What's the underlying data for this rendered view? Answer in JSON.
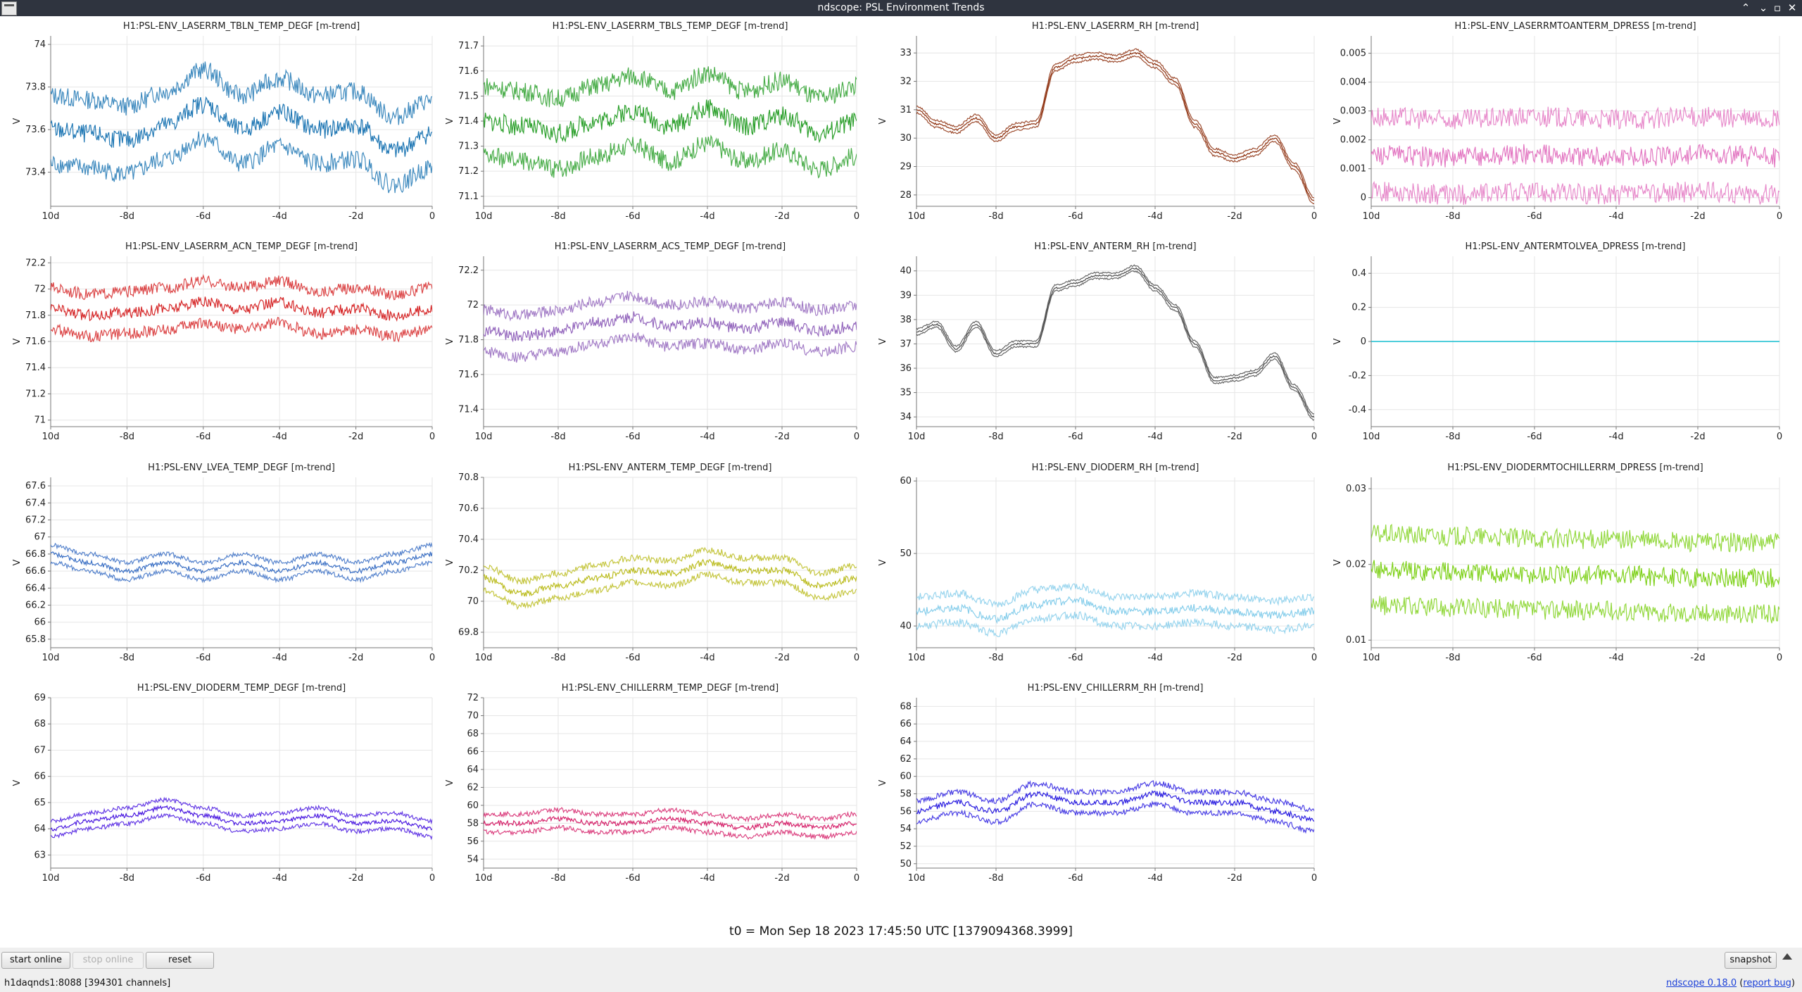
{
  "window": {
    "title": "ndscope: PSL Environment Trends"
  },
  "footer": {
    "t0": "t0 = Mon Sep 18 2023 17:45:50 UTC [1379094368.3999]"
  },
  "toolbar": {
    "start_online": "start online",
    "stop_online": "stop online",
    "reset": "reset",
    "snapshot": "snapshot"
  },
  "status": {
    "server": "h1daqnds1:8088  [394301 channels]",
    "version": "ndscope 0.18.0",
    "report_bug": "report bug"
  },
  "chart_data": [
    {
      "type": "line",
      "title": "H1:PSL-ENV_LASERRM_TBLN_TEMP_DEGF [m-trend]",
      "ylabel": "V",
      "color": "#1f77b4",
      "xticks": [
        "10d",
        "-8d",
        "-6d",
        "-4d",
        "-2d",
        "0"
      ],
      "yticks": [
        73.4,
        73.6,
        73.8,
        74
      ],
      "ylim": [
        73.24,
        74.04
      ],
      "x": [
        -10,
        -9,
        -8,
        -7,
        -6,
        -5,
        -4,
        -3,
        -2,
        -1,
        0
      ],
      "y": [
        73.6,
        73.58,
        73.55,
        73.62,
        73.72,
        73.6,
        73.68,
        73.6,
        73.62,
        73.5,
        73.58
      ],
      "band": 0.16
    },
    {
      "type": "line",
      "title": "H1:PSL-ENV_LASERRM_TBLS_TEMP_DEGF [m-trend]",
      "ylabel": "V",
      "color": "#2ca02c",
      "xticks": [
        "10d",
        "-8d",
        "-6d",
        "-4d",
        "-2d",
        "0"
      ],
      "yticks": [
        71.1,
        71.2,
        71.3,
        71.4,
        71.5,
        71.6,
        71.7
      ],
      "ylim": [
        71.06,
        71.74
      ],
      "x": [
        -10,
        -9,
        -8,
        -7,
        -6,
        -5,
        -4,
        -3,
        -2,
        -1,
        0
      ],
      "y": [
        71.4,
        71.38,
        71.35,
        71.4,
        71.44,
        71.38,
        71.45,
        71.38,
        71.42,
        71.35,
        71.4
      ],
      "band": 0.14
    },
    {
      "type": "line",
      "title": "H1:PSL-ENV_LASERRM_RH [m-trend]",
      "ylabel": "V",
      "color": "#8c2d0a",
      "xticks": [
        "10d",
        "-8d",
        "-6d",
        "-4d",
        "-2d",
        "0"
      ],
      "yticks": [
        28,
        29,
        30,
        31,
        32,
        33
      ],
      "ylim": [
        27.6,
        33.6
      ],
      "x": [
        -10,
        -9.5,
        -9,
        -8.5,
        -8,
        -7.5,
        -7,
        -6.5,
        -6,
        -5.5,
        -5,
        -4.5,
        -4,
        -3.5,
        -3,
        -2.5,
        -2,
        -1.5,
        -1,
        -0.5,
        0
      ],
      "y": [
        31,
        30.5,
        30.3,
        30.7,
        30,
        30.4,
        30.5,
        32.5,
        32.8,
        32.9,
        32.8,
        33,
        32.6,
        32,
        30.5,
        29.5,
        29.3,
        29.5,
        30,
        29,
        27.8
      ],
      "band": 0.12
    },
    {
      "type": "line",
      "title": "H1:PSL-ENV_LASERRMTOANTERM_DPRESS [m-trend]",
      "ylabel": "V",
      "color": "#e377c2",
      "xticks": [
        "10d",
        "-8d",
        "-6d",
        "-4d",
        "-2d",
        "0"
      ],
      "yticks": [
        0,
        0.001,
        0.002,
        0.003,
        0.004,
        0.005
      ],
      "ylim": [
        -0.0003,
        0.0056
      ],
      "x": [
        -10,
        -8,
        -6,
        -4,
        -2,
        0
      ],
      "y": [
        0.0015,
        0.0014,
        0.0015,
        0.0014,
        0.0015,
        0.0014
      ],
      "band": 0.0013
    },
    {
      "type": "line",
      "title": "H1:PSL-ENV_LASERRM_ACN_TEMP_DEGF [m-trend]",
      "ylabel": "V",
      "color": "#d62728",
      "xticks": [
        "10d",
        "-8d",
        "-6d",
        "-4d",
        "-2d",
        "0"
      ],
      "yticks": [
        71,
        71.2,
        71.4,
        71.6,
        71.8,
        72,
        72.2
      ],
      "ylim": [
        70.95,
        72.25
      ],
      "x": [
        -10,
        -9,
        -8,
        -7,
        -6,
        -5,
        -4,
        -3,
        -2,
        -1,
        0
      ],
      "y": [
        71.85,
        71.8,
        71.82,
        71.85,
        71.9,
        71.85,
        71.9,
        71.82,
        71.85,
        71.8,
        71.85
      ],
      "band": 0.16
    },
    {
      "type": "line",
      "title": "H1:PSL-ENV_LASERRM_ACS_TEMP_DEGF [m-trend]",
      "ylabel": "V",
      "color": "#9467bd",
      "xticks": [
        "10d",
        "-8d",
        "-6d",
        "-4d",
        "-2d",
        "0"
      ],
      "yticks": [
        71.4,
        71.6,
        71.8,
        72,
        72.2
      ],
      "ylim": [
        71.3,
        72.28
      ],
      "x": [
        -10,
        -9,
        -8,
        -7,
        -6,
        -5,
        -4,
        -3,
        -2,
        -1,
        0
      ],
      "y": [
        71.85,
        71.82,
        71.85,
        71.9,
        71.93,
        71.88,
        71.9,
        71.86,
        71.9,
        71.85,
        71.88
      ],
      "band": 0.12
    },
    {
      "type": "line",
      "title": "H1:PSL-ENV_ANTERM_RH [m-trend]",
      "ylabel": "V",
      "color": "#4a4a4a",
      "xticks": [
        "10d",
        "-8d",
        "-6d",
        "-4d",
        "-2d",
        "0"
      ],
      "yticks": [
        34,
        35,
        36,
        37,
        38,
        39,
        40
      ],
      "ylim": [
        33.6,
        40.6
      ],
      "x": [
        -10,
        -9.5,
        -9,
        -8.5,
        -8,
        -7.5,
        -7,
        -6.5,
        -6,
        -5.5,
        -5,
        -4.5,
        -4,
        -3.5,
        -3,
        -2.5,
        -2,
        -1.5,
        -1,
        -0.5,
        0
      ],
      "y": [
        37.5,
        37.8,
        36.8,
        37.8,
        36.6,
        37,
        37,
        39.3,
        39.5,
        39.8,
        39.8,
        40.1,
        39.3,
        38.5,
        37,
        35.5,
        35.6,
        35.8,
        36.5,
        35.2,
        34
      ],
      "band": 0.12
    },
    {
      "type": "line",
      "title": "H1:PSL-ENV_ANTERMTOLVEA_DPRESS [m-trend]",
      "ylabel": "V",
      "color": "#17becf",
      "xticks": [
        "10d",
        "-8d",
        "-6d",
        "-4d",
        "-2d",
        "0"
      ],
      "yticks": [
        -0.4,
        -0.2,
        0,
        0.2,
        0.4
      ],
      "ylim": [
        -0.5,
        0.5
      ],
      "x": [
        -10,
        0
      ],
      "y": [
        0,
        0
      ],
      "band": 0
    },
    {
      "type": "line",
      "title": "H1:PSL-ENV_LVEA_TEMP_DEGF [m-trend]",
      "ylabel": "V",
      "color": "#3a6fc4",
      "xticks": [
        "10d",
        "-8d",
        "-6d",
        "-4d",
        "-2d",
        "0"
      ],
      "yticks": [
        65.8,
        66,
        66.2,
        66.4,
        66.6,
        66.8,
        67,
        67.2,
        67.4,
        67.6
      ],
      "ylim": [
        65.7,
        67.7
      ],
      "x": [
        -10,
        -9,
        -8,
        -7,
        -6,
        -5,
        -4,
        -3,
        -2,
        -1,
        0
      ],
      "y": [
        66.8,
        66.7,
        66.6,
        66.7,
        66.6,
        66.7,
        66.6,
        66.7,
        66.6,
        66.7,
        66.8
      ],
      "band": 0.1
    },
    {
      "type": "line",
      "title": "H1:PSL-ENV_ANTERM_TEMP_DEGF [m-trend]",
      "ylabel": "V",
      "color": "#bcbd22",
      "xticks": [
        "10d",
        "-8d",
        "-6d",
        "-4d",
        "-2d",
        "0"
      ],
      "yticks": [
        69.8,
        70,
        70.2,
        70.4,
        70.6,
        70.8
      ],
      "ylim": [
        69.7,
        70.8
      ],
      "x": [
        -10,
        -9,
        -8,
        -7,
        -6,
        -5,
        -4,
        -3,
        -2,
        -1,
        0
      ],
      "y": [
        70.15,
        70.05,
        70.1,
        70.15,
        70.2,
        70.18,
        70.25,
        70.2,
        70.2,
        70.1,
        70.15
      ],
      "band": 0.08
    },
    {
      "type": "line",
      "title": "H1:PSL-ENV_DIODERM_RH [m-trend]",
      "ylabel": "V",
      "color": "#87ceeb",
      "xticks": [
        "10d",
        "-8d",
        "-6d",
        "-4d",
        "-2d",
        "0"
      ],
      "yticks": [
        40,
        50,
        60
      ],
      "ylim": [
        37,
        60.5
      ],
      "x": [
        -10,
        -9,
        -8,
        -7,
        -6,
        -5,
        -4,
        -3,
        -2,
        -1,
        0
      ],
      "y": [
        42,
        42.5,
        41,
        43,
        43.5,
        42,
        42,
        42.5,
        42,
        41.5,
        42
      ],
      "band": 2
    },
    {
      "type": "line",
      "title": "H1:PSL-ENV_DIODERMTOCHILLERRM_DPRESS [m-trend]",
      "ylabel": "V",
      "color": "#7fd11b",
      "xticks": [
        "10d",
        "-8d",
        "-6d",
        "-4d",
        "-2d",
        "0"
      ],
      "yticks": [
        0.01,
        0.02,
        0.03
      ],
      "ylim": [
        0.009,
        0.0315
      ],
      "x": [
        -10,
        -8,
        -6,
        -4,
        -2,
        0
      ],
      "y": [
        0.0193,
        0.019,
        0.0187,
        0.0186,
        0.0182,
        0.0182
      ],
      "band": 0.0047
    },
    {
      "type": "line",
      "title": "H1:PSL-ENV_DIODERM_TEMP_DEGF [m-trend]",
      "ylabel": "V",
      "color": "#4a19e0",
      "xticks": [
        "10d",
        "-8d",
        "-6d",
        "-4d",
        "-2d",
        "0"
      ],
      "yticks": [
        63,
        64,
        65,
        66,
        67,
        68,
        69
      ],
      "ylim": [
        62.5,
        69
      ],
      "x": [
        -10,
        -9,
        -8,
        -7,
        -6,
        -5,
        -4,
        -3,
        -2,
        -1,
        0
      ],
      "y": [
        64,
        64.3,
        64.5,
        64.8,
        64.5,
        64.2,
        64.3,
        64.5,
        64.2,
        64.3,
        64
      ],
      "band": 0.3
    },
    {
      "type": "line",
      "title": "H1:PSL-ENV_CHILLERRM_TEMP_DEGF [m-trend]",
      "ylabel": "V",
      "color": "#d6246c",
      "xticks": [
        "10d",
        "-8d",
        "-6d",
        "-4d",
        "-2d",
        "0"
      ],
      "yticks": [
        54,
        56,
        58,
        60,
        62,
        64,
        66,
        68,
        70,
        72
      ],
      "ylim": [
        53,
        72
      ],
      "x": [
        -10,
        -9,
        -8,
        -7,
        -6,
        -5,
        -4,
        -3,
        -2,
        -1,
        0
      ],
      "y": [
        58,
        58,
        58.5,
        58,
        58,
        58.5,
        58,
        57.5,
        58,
        57.5,
        58
      ],
      "band": 1
    },
    {
      "type": "line",
      "title": "H1:PSL-ENV_CHILLERRM_RH [m-trend]",
      "ylabel": "V",
      "color": "#2b1ee0",
      "xticks": [
        "10d",
        "-8d",
        "-6d",
        "-4d",
        "-2d",
        "0"
      ],
      "yticks": [
        50,
        52,
        54,
        56,
        58,
        60,
        62,
        64,
        66,
        68
      ],
      "ylim": [
        49.5,
        69
      ],
      "x": [
        -10,
        -9,
        -8,
        -7,
        -6,
        -5,
        -4,
        -3,
        -2,
        -1,
        0
      ],
      "y": [
        56,
        57,
        56,
        58,
        57,
        57,
        58,
        57,
        57,
        56,
        55
      ],
      "band": 1.2
    }
  ]
}
